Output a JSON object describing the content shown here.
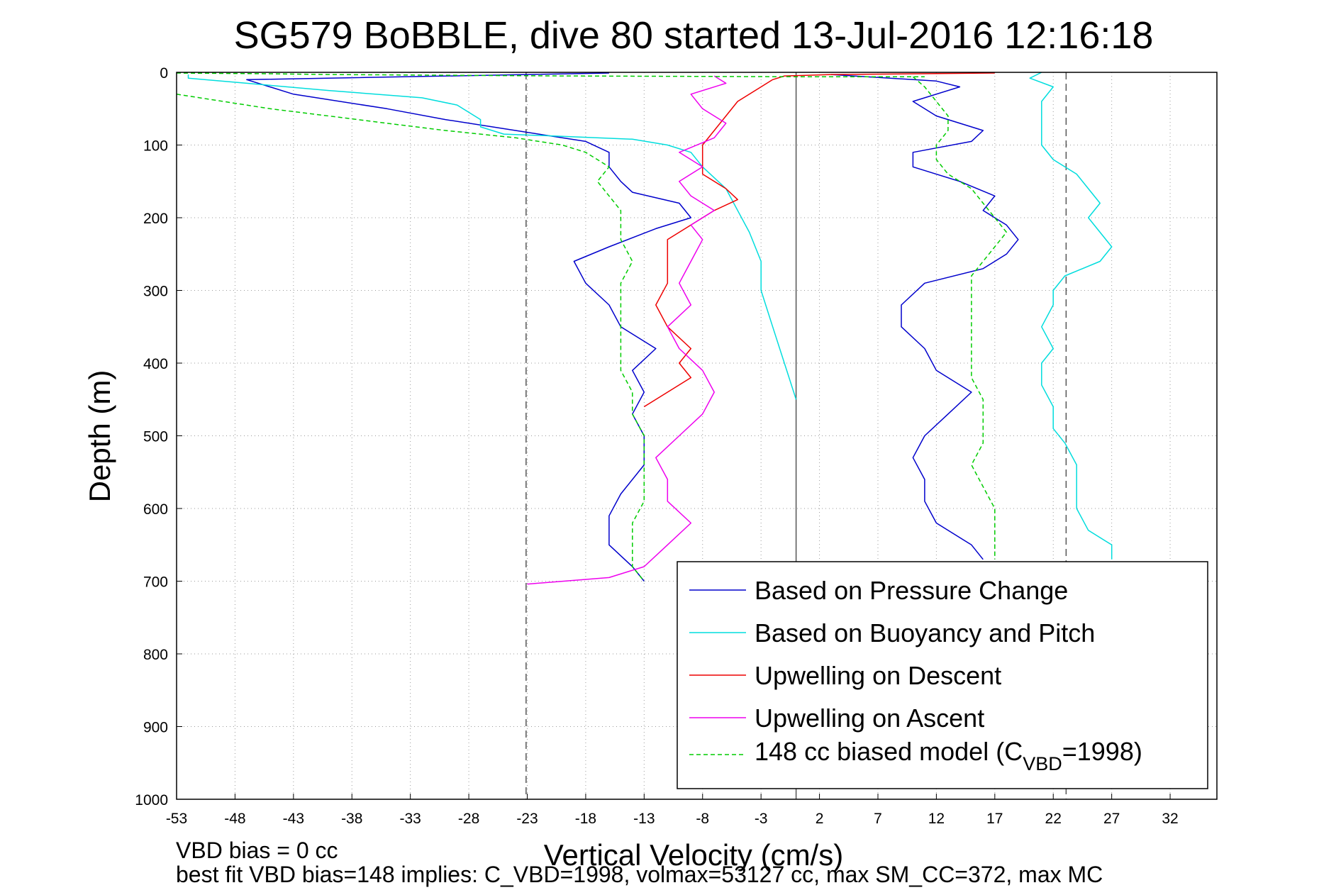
{
  "chart_data": {
    "type": "line",
    "title": "SG579 BoBBLE, dive 80 started 13-Jul-2016 12:16:18",
    "xlabel": "Vertical Velocity (cm/s)",
    "ylabel": "Depth (m)",
    "xlim": [
      -53,
      36
    ],
    "ylim": [
      0,
      1000
    ],
    "y_reversed": true,
    "grid": true,
    "xticks": [
      -53,
      -48,
      -43,
      -38,
      -33,
      -28,
      -23,
      -18,
      -13,
      -8,
      -3,
      2,
      7,
      12,
      17,
      22,
      27,
      32
    ],
    "yticks": [
      0,
      100,
      200,
      300,
      400,
      500,
      600,
      700,
      800,
      900,
      1000
    ],
    "reference_lines": [
      {
        "x": -23.1,
        "style": "dashed",
        "color": "#555555"
      },
      {
        "x": 0,
        "style": "solid",
        "color": "#555555"
      },
      {
        "x": 23.1,
        "style": "dashed",
        "color": "#555555"
      }
    ],
    "legend_position": "bottom-right",
    "series": [
      {
        "name": "Based on Pressure Change",
        "color": "#0000cc",
        "style": "solid",
        "segments": [
          [
            [
              -16,
              1
            ],
            [
              -47,
              10
            ],
            [
              -43,
              30
            ],
            [
              -35,
              50
            ],
            [
              -30,
              65
            ],
            [
              -24,
              80
            ],
            [
              -18,
              95
            ],
            [
              -16,
              110
            ],
            [
              -16,
              130
            ],
            [
              -15,
              150
            ],
            [
              -14,
              165
            ],
            [
              -10,
              180
            ],
            [
              -9,
              200
            ],
            [
              -12,
              215
            ],
            [
              -16,
              240
            ],
            [
              -19,
              260
            ],
            [
              -18,
              290
            ],
            [
              -16,
              320
            ],
            [
              -15,
              350
            ],
            [
              -12,
              380
            ],
            [
              -14,
              410
            ],
            [
              -13,
              440
            ],
            [
              -14,
              470
            ],
            [
              -13,
              500
            ],
            [
              -13,
              540
            ],
            [
              -15,
              580
            ],
            [
              -16,
              610
            ],
            [
              -16,
              650
            ],
            [
              -14,
              680
            ],
            [
              -13,
              700
            ]
          ],
          [
            [
              3,
              3
            ],
            [
              12,
              12
            ],
            [
              14,
              20
            ],
            [
              10,
              40
            ],
            [
              12,
              60
            ],
            [
              16,
              80
            ],
            [
              15,
              95
            ],
            [
              10,
              110
            ],
            [
              10,
              130
            ],
            [
              14,
              150
            ],
            [
              17,
              170
            ],
            [
              16,
              190
            ],
            [
              18,
              210
            ],
            [
              19,
              230
            ],
            [
              18,
              250
            ],
            [
              16,
              270
            ],
            [
              11,
              290
            ],
            [
              9,
              320
            ],
            [
              9,
              350
            ],
            [
              11,
              380
            ],
            [
              12,
              410
            ],
            [
              15,
              440
            ],
            [
              13,
              470
            ],
            [
              11,
              500
            ],
            [
              10,
              530
            ],
            [
              11,
              560
            ],
            [
              11,
              590
            ],
            [
              12,
              620
            ],
            [
              15,
              650
            ],
            [
              16,
              670
            ]
          ]
        ]
      },
      {
        "name": "Based on Buoyancy and Pitch",
        "color": "#00dddd",
        "style": "solid",
        "segments": [
          [
            [
              -52,
              3
            ],
            [
              -52,
              8
            ],
            [
              -47,
              15
            ],
            [
              -40,
              25
            ],
            [
              -32,
              35
            ],
            [
              -29,
              45
            ],
            [
              -28,
              55
            ],
            [
              -27,
              65
            ],
            [
              -27,
              75
            ],
            [
              -25,
              85
            ],
            [
              -20,
              88
            ],
            [
              -14,
              92
            ],
            [
              -11,
              100
            ],
            [
              -9,
              110
            ],
            [
              -8,
              130
            ],
            [
              -6,
              160
            ],
            [
              -5,
              190
            ],
            [
              -4,
              220
            ],
            [
              -3,
              260
            ],
            [
              -3,
              300
            ],
            [
              -2,
              350
            ],
            [
              -1,
              400
            ],
            [
              0,
              450
            ]
          ],
          [
            [
              21,
              0
            ],
            [
              20,
              8
            ],
            [
              22,
              20
            ],
            [
              21,
              40
            ],
            [
              21,
              60
            ],
            [
              21,
              80
            ],
            [
              21,
              100
            ],
            [
              22,
              120
            ],
            [
              24,
              140
            ],
            [
              25,
              160
            ],
            [
              26,
              180
            ],
            [
              25,
              200
            ],
            [
              26,
              220
            ],
            [
              27,
              240
            ],
            [
              26,
              260
            ],
            [
              23,
              280
            ],
            [
              22,
              300
            ],
            [
              22,
              320
            ],
            [
              21,
              350
            ],
            [
              22,
              380
            ],
            [
              21,
              400
            ],
            [
              21,
              430
            ],
            [
              22,
              460
            ],
            [
              22,
              490
            ],
            [
              23,
              510
            ],
            [
              24,
              540
            ],
            [
              24,
              570
            ],
            [
              24,
              600
            ],
            [
              25,
              630
            ],
            [
              27,
              650
            ],
            [
              27,
              670
            ]
          ]
        ]
      },
      {
        "name": "Upwelling on Descent",
        "color": "#ee0000",
        "style": "solid",
        "segments": [
          [
            [
              17,
              1
            ],
            [
              3,
              3
            ],
            [
              -1,
              5
            ],
            [
              -2,
              10
            ],
            [
              -3,
              20
            ],
            [
              -5,
              40
            ],
            [
              -6,
              60
            ],
            [
              -7,
              80
            ],
            [
              -8,
              100
            ],
            [
              -8,
              120
            ],
            [
              -8,
              140
            ],
            [
              -6,
              160
            ],
            [
              -5,
              175
            ],
            [
              -7,
              190
            ],
            [
              -9,
              210
            ],
            [
              -11,
              230
            ],
            [
              -11,
              260
            ],
            [
              -11,
              290
            ],
            [
              -12,
              320
            ],
            [
              -11,
              350
            ],
            [
              -9,
              380
            ],
            [
              -10,
              400
            ],
            [
              -9,
              420
            ],
            [
              -11,
              440
            ],
            [
              -13,
              460
            ]
          ]
        ]
      },
      {
        "name": "Upwelling on Ascent",
        "color": "#ee00ee",
        "style": "solid",
        "segments": [
          [
            [
              -7,
              5
            ],
            [
              -6,
              15
            ],
            [
              -9,
              30
            ],
            [
              -8,
              50
            ],
            [
              -6,
              70
            ],
            [
              -7,
              90
            ],
            [
              -10,
              110
            ],
            [
              -8,
              130
            ],
            [
              -10,
              150
            ],
            [
              -9,
              170
            ],
            [
              -7,
              190
            ],
            [
              -9,
              210
            ],
            [
              -8,
              230
            ],
            [
              -9,
              260
            ],
            [
              -10,
              290
            ],
            [
              -9,
              320
            ],
            [
              -11,
              350
            ],
            [
              -10,
              380
            ],
            [
              -8,
              410
            ],
            [
              -7,
              440
            ],
            [
              -8,
              470
            ],
            [
              -10,
              500
            ],
            [
              -12,
              530
            ],
            [
              -11,
              560
            ],
            [
              -11,
              590
            ],
            [
              -9,
              620
            ],
            [
              -11,
              650
            ],
            [
              -13,
              680
            ],
            [
              -16,
              695
            ],
            [
              -23,
              704
            ]
          ]
        ]
      },
      {
        "name": "148 cc biased model (C_VBD=1998)",
        "color": "#00cc00",
        "style": "dashed",
        "segments": [
          [
            [
              -53,
              1
            ],
            [
              -45,
              2
            ],
            [
              -40,
              3
            ],
            [
              -30,
              4
            ],
            [
              -20,
              5
            ],
            [
              0,
              6
            ],
            [
              11,
              6
            ]
          ],
          [
            [
              -53,
              30
            ],
            [
              -45,
              50
            ],
            [
              -40,
              60
            ],
            [
              -35,
              70
            ],
            [
              -30,
              80
            ],
            [
              -24,
              90
            ],
            [
              -20,
              100
            ],
            [
              -18,
              110
            ],
            [
              -17,
              120
            ],
            [
              -16,
              130
            ],
            [
              -17,
              150
            ],
            [
              -16,
              170
            ],
            [
              -15,
              190
            ],
            [
              -15,
              210
            ],
            [
              -15,
              230
            ],
            [
              -14,
              260
            ],
            [
              -15,
              290
            ],
            [
              -15,
              320
            ],
            [
              -15,
              350
            ],
            [
              -15,
              380
            ],
            [
              -15,
              410
            ],
            [
              -14,
              440
            ],
            [
              -14,
              470
            ],
            [
              -13,
              500
            ],
            [
              -13,
              530
            ],
            [
              -13,
              560
            ],
            [
              -13,
              590
            ],
            [
              -14,
              620
            ],
            [
              -14,
              650
            ],
            [
              -14,
              680
            ],
            [
              -13,
              700
            ]
          ],
          [
            [
              10,
              6
            ],
            [
              11,
              20
            ],
            [
              12,
              40
            ],
            [
              13,
              60
            ],
            [
              13,
              80
            ],
            [
              12,
              100
            ],
            [
              12,
              120
            ],
            [
              13,
              140
            ],
            [
              15,
              160
            ],
            [
              16,
              180
            ],
            [
              17,
              200
            ],
            [
              18,
              220
            ],
            [
              17,
              240
            ],
            [
              16,
              260
            ],
            [
              15,
              280
            ],
            [
              15,
              300
            ],
            [
              15,
              330
            ],
            [
              15,
              360
            ],
            [
              15,
              390
            ],
            [
              15,
              420
            ],
            [
              16,
              450
            ],
            [
              16,
              480
            ],
            [
              16,
              510
            ],
            [
              15,
              540
            ],
            [
              16,
              570
            ],
            [
              17,
              600
            ],
            [
              17,
              630
            ],
            [
              17,
              650
            ],
            [
              17,
              670
            ]
          ]
        ]
      }
    ]
  },
  "legend": {
    "entries": [
      {
        "label": "Based on Pressure Change",
        "color": "#0000cc",
        "dash": false
      },
      {
        "label": "Based on Buoyancy and Pitch",
        "color": "#00dddd",
        "dash": false
      },
      {
        "label": "Upwelling on Descent",
        "color": "#ee0000",
        "dash": false
      },
      {
        "label": "Upwelling on Ascent",
        "color": "#ee00ee",
        "dash": false
      },
      {
        "label_main": "148 cc biased model (C",
        "label_sub": "VBD",
        "label_tail": "=1998)",
        "color": "#00cc00",
        "dash": true
      }
    ]
  },
  "footer": {
    "note1": "VBD bias = 0 cc",
    "note2": "best fit VBD bias=148 implies: C_VBD=1998, volmax=53127 cc, max SM_CC=372, max MC"
  }
}
